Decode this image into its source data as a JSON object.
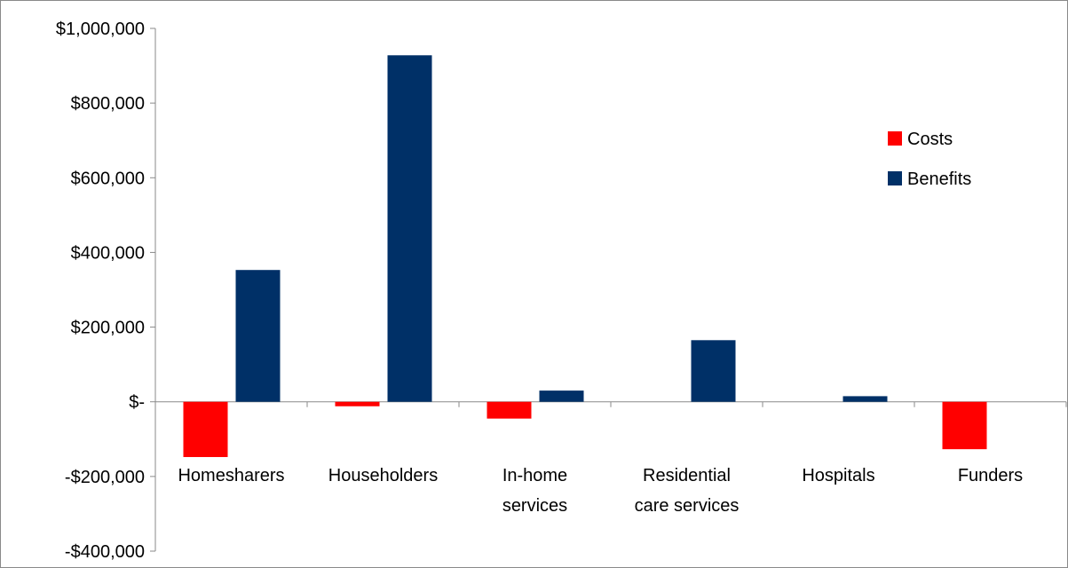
{
  "chart_data": {
    "type": "bar",
    "categories": [
      [
        "Homesharers"
      ],
      [
        "Householders"
      ],
      [
        "In-home",
        "services"
      ],
      [
        "Residential",
        "care services"
      ],
      [
        "Hospitals"
      ],
      [
        "Funders"
      ]
    ],
    "series": [
      {
        "name": "Costs",
        "color": "#ff0000",
        "values": [
          -148000,
          -12000,
          -45000,
          0,
          0,
          -127000
        ]
      },
      {
        "name": "Benefits",
        "color": "#003067",
        "values": [
          353000,
          928000,
          30000,
          165000,
          15000,
          0
        ]
      }
    ],
    "yticks": [
      {
        "value": 1000000,
        "label": "$1,000,000"
      },
      {
        "value": 800000,
        "label": "$800,000"
      },
      {
        "value": 600000,
        "label": "$600,000"
      },
      {
        "value": 400000,
        "label": "$400,000"
      },
      {
        "value": 200000,
        "label": "$200,000"
      },
      {
        "value": 0,
        "label": "$-"
      },
      {
        "value": -200000,
        "label": "-$200,000"
      },
      {
        "value": -400000,
        "label": "-$400,000"
      }
    ],
    "ylim": [
      -400000,
      1000000
    ],
    "grid": false,
    "legend_position": "right"
  }
}
